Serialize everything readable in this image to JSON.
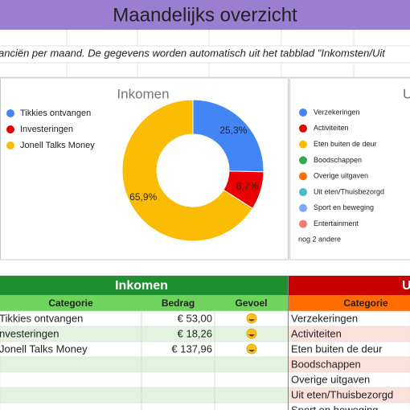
{
  "title": "Maandelijks overzicht",
  "subtitle": "anciën per maand. De gegevens worden automatisch uit het tabblad \"Inkomsten/Uit",
  "chart_data": [
    {
      "type": "pie",
      "title": "Inkomen",
      "categories": [
        "Tikkies ontvangen",
        "Investeringen",
        "Jonell Talks Money"
      ],
      "values": [
        25.3,
        8.7,
        65.9
      ],
      "value_labels": [
        "25,3%",
        "8,7%",
        "65,9%"
      ],
      "colors": [
        "#4285f4",
        "#ea0000",
        "#fbbc04"
      ],
      "donut": true,
      "legend": "left"
    },
    {
      "type": "pie",
      "title": "U",
      "categories": [
        "Verzekeringen",
        "Activiteiten",
        "Eten buiten de deur",
        "Boodschappen",
        "Overige uitgaven",
        "Uit eten/Thuisbezorgd",
        "Sport en beweging",
        "Entertainment"
      ],
      "colors": [
        "#4285f4",
        "#ea0000",
        "#fbbc04",
        "#34a853",
        "#ff6d01",
        "#46bdc6",
        "#7baaf7",
        "#f07b72"
      ],
      "more_label": "nog 2 andere",
      "legend": "left"
    }
  ],
  "income_table": {
    "title": "Inkomen",
    "columns": [
      "Categorie",
      "Bedrag",
      "Gevoel"
    ],
    "rows": [
      [
        "Tikkies ontvangen",
        "€ 53,00"
      ],
      [
        "nvesteringen",
        "€ 18,26"
      ],
      [
        "Jonell Talks Money",
        "€ 137,96"
      ]
    ]
  },
  "expense_table": {
    "title": "U",
    "columns": [
      "Categorie"
    ],
    "rows": [
      [
        "Verzekeringen"
      ],
      [
        "Activiteiten"
      ],
      [
        "Eten buiten de deur"
      ],
      [
        "Boodschappen"
      ],
      [
        "Overige uitgaven"
      ],
      [
        "Uit eten/Thuisbezorgd"
      ],
      [
        "Sport en beweging"
      ]
    ]
  }
}
